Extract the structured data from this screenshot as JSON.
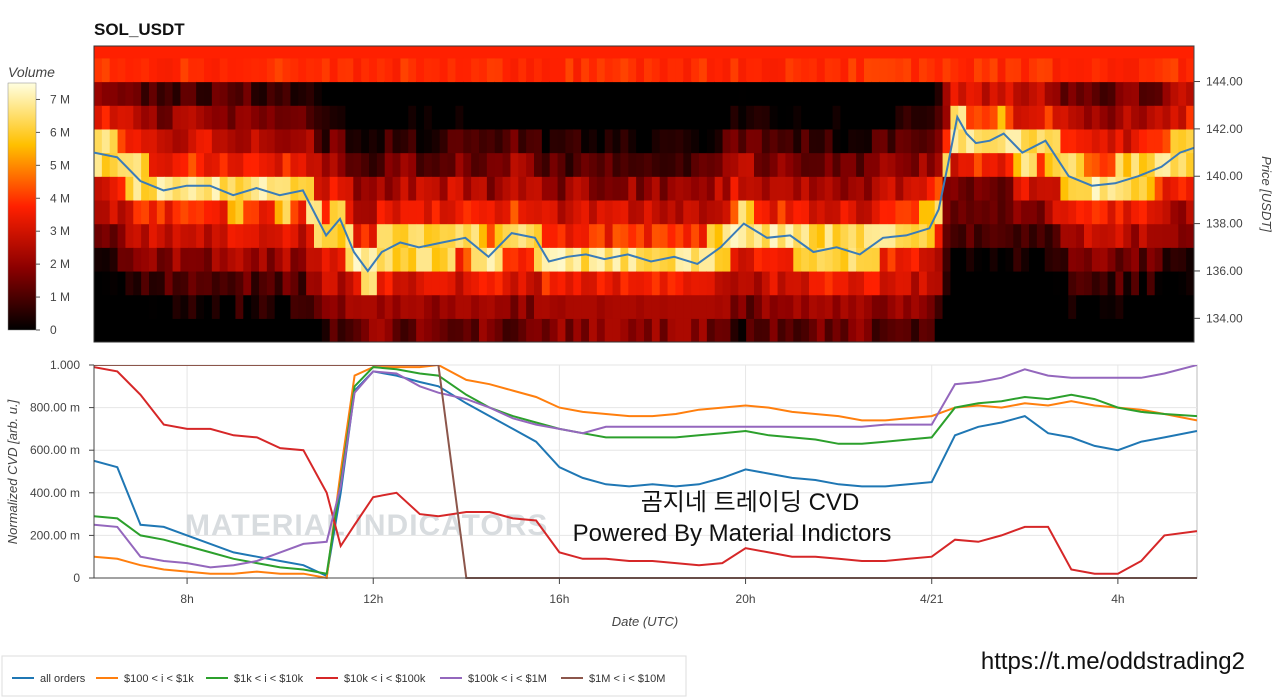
{
  "chart_data": [
    {
      "type": "heatmap",
      "title": "SOL_USDT",
      "colorbar": {
        "label": "Volume",
        "ticks": [
          "0",
          "1 M",
          "2 M",
          "3 M",
          "4 M",
          "5 M",
          "6 M",
          "7 M"
        ],
        "values": [
          0,
          1,
          2,
          3,
          4,
          5,
          6,
          7
        ],
        "max": 7.5
      },
      "ylabel": "Price [USDT]",
      "ylim": [
        133,
        145.5
      ],
      "yticks": [
        "134.00",
        "136.00",
        "138.00",
        "140.00",
        "142.00",
        "144.00"
      ],
      "ytick_values": [
        134,
        136,
        138,
        140,
        142,
        144
      ],
      "xlim_hours": [
        6,
        29.7
      ],
      "price_line": {
        "color": "#3a7cb8",
        "hours": [
          6,
          6.5,
          7,
          7.5,
          8,
          8.5,
          9,
          9.5,
          10,
          10.5,
          11,
          11.3,
          11.6,
          11.9,
          12.2,
          12.6,
          13,
          13.5,
          14,
          14.5,
          15,
          15.5,
          15.8,
          16.2,
          16.6,
          17,
          17.5,
          18,
          18.5,
          19,
          19.5,
          20,
          20.5,
          21,
          21.5,
          22,
          22.5,
          23,
          23.5,
          24,
          24.2,
          24.4,
          24.6,
          24.8,
          25,
          25.3,
          25.6,
          26,
          26.5,
          27,
          27.5,
          28,
          28.5,
          29,
          29.4,
          29.7
        ],
        "prices": [
          141,
          140.8,
          139.8,
          139.4,
          139.6,
          139.6,
          139.2,
          139.5,
          139.2,
          139.4,
          137.5,
          138.2,
          136.8,
          136.0,
          136.8,
          137.2,
          137.0,
          137.2,
          137.4,
          136.6,
          137.6,
          137.4,
          136.4,
          136.6,
          136.7,
          136.5,
          136.7,
          136.4,
          136.6,
          136.3,
          137.0,
          138.0,
          137.4,
          137.5,
          136.8,
          137.0,
          136.7,
          137.4,
          137.5,
          137.8,
          138.6,
          140.5,
          142.5,
          141.8,
          141.4,
          141.5,
          141.8,
          141.0,
          141.5,
          140.0,
          139.6,
          139.7,
          140.0,
          140.4,
          141.0,
          141.2
        ]
      }
    },
    {
      "type": "line",
      "ylabel": "Normalized CVD [arb. u.]",
      "xlabel": "Date (UTC)",
      "ylim": [
        0,
        1
      ],
      "yticks": [
        "0",
        "200.00 m",
        "400.00 m",
        "600.00 m",
        "800.00 m",
        "1.000"
      ],
      "ytick_values": [
        0,
        0.2,
        0.4,
        0.6,
        0.8,
        1.0
      ],
      "xticks": [
        "8h",
        "12h",
        "16h",
        "20h",
        "4/21",
        "4h"
      ],
      "xtick_hours": [
        8,
        12,
        16,
        20,
        24,
        28
      ],
      "xlim_hours": [
        6,
        29.7
      ],
      "x_hours": [
        6,
        6.5,
        7,
        7.5,
        8,
        8.5,
        9,
        9.5,
        10,
        10.5,
        11,
        11.3,
        11.6,
        12,
        12.5,
        13,
        13.4,
        14,
        14.5,
        15,
        15.5,
        16,
        16.5,
        17,
        17.5,
        18,
        18.5,
        19,
        19.5,
        20,
        20.5,
        21,
        21.5,
        22,
        22.5,
        23,
        23.5,
        24,
        24.5,
        25,
        25.5,
        26,
        26.5,
        27,
        27.5,
        28,
        28.5,
        29,
        29.7
      ],
      "series": [
        {
          "name": "all orders",
          "color": "#1f77b4",
          "values": [
            0.55,
            0.52,
            0.25,
            0.24,
            0.2,
            0.16,
            0.12,
            0.1,
            0.08,
            0.06,
            0.01,
            0.4,
            0.88,
            0.97,
            0.95,
            0.92,
            0.9,
            0.82,
            0.76,
            0.7,
            0.64,
            0.52,
            0.47,
            0.44,
            0.43,
            0.44,
            0.43,
            0.44,
            0.47,
            0.51,
            0.49,
            0.47,
            0.46,
            0.44,
            0.43,
            0.43,
            0.44,
            0.45,
            0.67,
            0.71,
            0.73,
            0.76,
            0.68,
            0.66,
            0.62,
            0.6,
            0.64,
            0.66,
            0.69
          ]
        },
        {
          "name": "$100 < i < $1k",
          "color": "#ff7f0e",
          "values": [
            0.1,
            0.09,
            0.06,
            0.04,
            0.03,
            0.02,
            0.02,
            0.03,
            0.02,
            0.02,
            0.0,
            0.5,
            0.95,
            0.99,
            0.99,
            0.99,
            1.0,
            0.93,
            0.91,
            0.88,
            0.85,
            0.8,
            0.78,
            0.77,
            0.76,
            0.76,
            0.77,
            0.79,
            0.8,
            0.81,
            0.8,
            0.78,
            0.77,
            0.76,
            0.74,
            0.74,
            0.75,
            0.76,
            0.8,
            0.81,
            0.8,
            0.82,
            0.81,
            0.83,
            0.81,
            0.8,
            0.79,
            0.77,
            0.74
          ]
        },
        {
          "name": "$1k < i < $10k",
          "color": "#2ca02c",
          "values": [
            0.29,
            0.28,
            0.2,
            0.18,
            0.15,
            0.12,
            0.09,
            0.07,
            0.05,
            0.04,
            0.02,
            0.45,
            0.9,
            0.99,
            0.98,
            0.96,
            0.95,
            0.86,
            0.8,
            0.76,
            0.73,
            0.7,
            0.68,
            0.66,
            0.66,
            0.66,
            0.66,
            0.67,
            0.68,
            0.69,
            0.67,
            0.66,
            0.65,
            0.63,
            0.63,
            0.64,
            0.65,
            0.66,
            0.8,
            0.82,
            0.83,
            0.85,
            0.84,
            0.86,
            0.84,
            0.8,
            0.78,
            0.77,
            0.76
          ]
        },
        {
          "name": "$10k < i < $100k",
          "color": "#d62728",
          "values": [
            0.99,
            0.97,
            0.86,
            0.72,
            0.7,
            0.7,
            0.67,
            0.66,
            0.61,
            0.6,
            0.4,
            0.15,
            0.25,
            0.38,
            0.4,
            0.3,
            0.29,
            0.31,
            0.31,
            0.28,
            0.27,
            0.12,
            0.09,
            0.09,
            0.08,
            0.08,
            0.07,
            0.06,
            0.07,
            0.14,
            0.12,
            0.1,
            0.1,
            0.09,
            0.08,
            0.08,
            0.09,
            0.1,
            0.18,
            0.17,
            0.2,
            0.24,
            0.24,
            0.04,
            0.02,
            0.02,
            0.08,
            0.2,
            0.22
          ]
        },
        {
          "name": "$100k < i < $1M",
          "color": "#9467bd",
          "values": [
            0.25,
            0.24,
            0.1,
            0.08,
            0.07,
            0.05,
            0.06,
            0.08,
            0.12,
            0.16,
            0.17,
            0.43,
            0.87,
            0.97,
            0.96,
            0.9,
            0.87,
            0.84,
            0.8,
            0.75,
            0.72,
            0.7,
            0.68,
            0.71,
            0.71,
            0.71,
            0.71,
            0.71,
            0.71,
            0.71,
            0.71,
            0.71,
            0.71,
            0.71,
            0.71,
            0.72,
            0.72,
            0.72,
            0.91,
            0.92,
            0.94,
            0.98,
            0.95,
            0.94,
            0.94,
            0.94,
            0.94,
            0.96,
            1.0
          ]
        },
        {
          "name": "$1M < i < $10M",
          "color": "#8c564b",
          "values": [
            1.0,
            1.0,
            1.0,
            1.0,
            1.0,
            1.0,
            1.0,
            1.0,
            1.0,
            1.0,
            1.0,
            1.0,
            1.0,
            1.0,
            1.0,
            1.0,
            1.0,
            0.0,
            0.0,
            0.0,
            0.0,
            0.0,
            0.0,
            0.0,
            0.0,
            0.0,
            0.0,
            0.0,
            0.0,
            0.0,
            0.0,
            0.0,
            0.0,
            0.0,
            0.0,
            0.0,
            0.0,
            0.0,
            0.0,
            0.0,
            0.0,
            0.0,
            0.0,
            0.0,
            0.0,
            0.0,
            0.0,
            0.0,
            0.0
          ]
        }
      ],
      "overlay_text": [
        "곰지네 트레이딩 CVD",
        "Powered By Material Indictors"
      ],
      "watermark": "MATERIAL INDICATORS"
    }
  ],
  "footer": {
    "url": "https://t.me/oddstrading2"
  }
}
